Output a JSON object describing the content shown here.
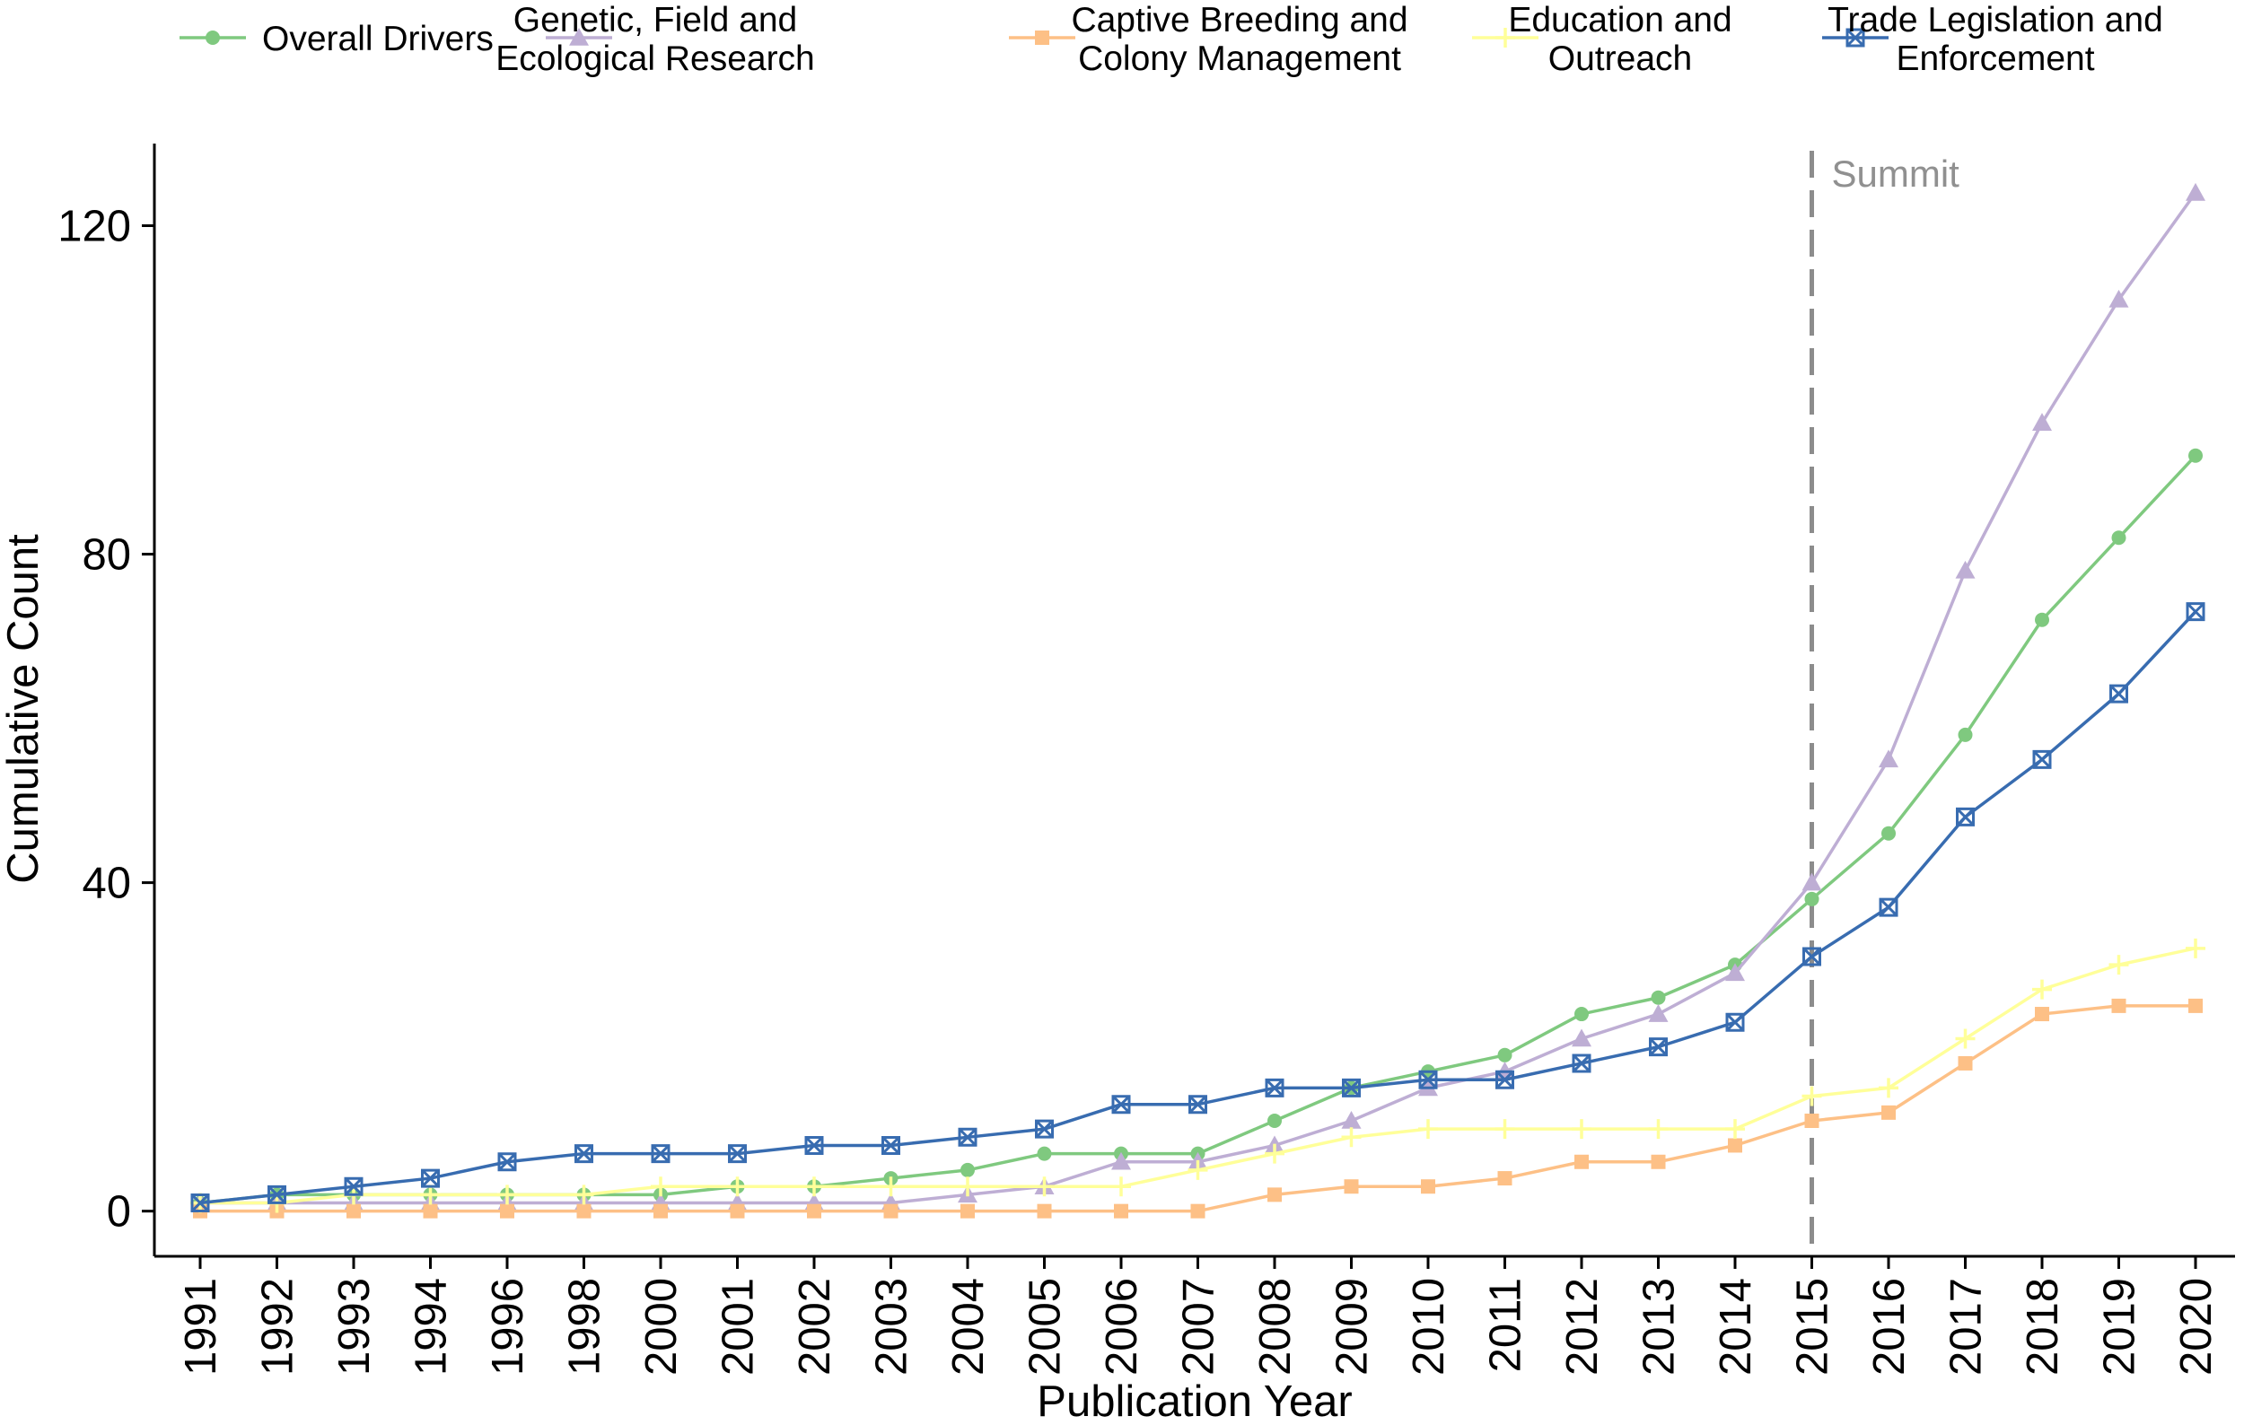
{
  "chart_data": {
    "type": "line",
    "xlabel": "Publication Year",
    "ylabel": "Cumulative Count",
    "categories": [
      "1991",
      "1992",
      "1993",
      "1994",
      "1996",
      "1998",
      "2000",
      "2001",
      "2002",
      "2003",
      "2004",
      "2005",
      "2006",
      "2007",
      "2008",
      "2009",
      "2010",
      "2011",
      "2012",
      "2013",
      "2014",
      "2015",
      "2016",
      "2017",
      "2018",
      "2019",
      "2020"
    ],
    "y_ticks": [
      0,
      40,
      80,
      120
    ],
    "ylim": [
      -5.5,
      130
    ],
    "grid": false,
    "legend_position": "top",
    "annotation": {
      "label": "Summit",
      "x": "2015",
      "style": "dashed vertical line"
    },
    "series": [
      {
        "name": "Overall Drivers",
        "name_lines": [
          "Overall Drivers"
        ],
        "color": "#7fc97f",
        "marker": "circle",
        "values": [
          1,
          2,
          2,
          2,
          2,
          2,
          2,
          3,
          3,
          4,
          5,
          7,
          7,
          7,
          11,
          15,
          17,
          19,
          24,
          26,
          30,
          38,
          46,
          58,
          72,
          82,
          92
        ]
      },
      {
        "name": "Genetic, Field and Ecological Research",
        "name_lines": [
          "Genetic, Field and",
          "Ecological Research"
        ],
        "color": "#beaed4",
        "marker": "triangle",
        "values": [
          1,
          1,
          1,
          1,
          1,
          1,
          1,
          1,
          1,
          1,
          2,
          3,
          6,
          6,
          8,
          11,
          15,
          17,
          21,
          24,
          29,
          40,
          55,
          78,
          96,
          111,
          124
        ]
      },
      {
        "name": "Captive Breeding and Colony Management",
        "name_lines": [
          "Captive Breeding and",
          "Colony Management"
        ],
        "color": "#fdc086",
        "marker": "square",
        "values": [
          0,
          0,
          0,
          0,
          0,
          0,
          0,
          0,
          0,
          0,
          0,
          0,
          0,
          0,
          2,
          3,
          3,
          4,
          6,
          6,
          8,
          11,
          12,
          18,
          24,
          25,
          25
        ]
      },
      {
        "name": "Education and Outreach",
        "name_lines": [
          "Education and",
          "Outreach"
        ],
        "color": "#ffff99",
        "marker": "plus",
        "values": [
          1,
          1,
          2,
          2,
          2,
          2,
          3,
          3,
          3,
          3,
          3,
          3,
          3,
          5,
          7,
          9,
          10,
          10,
          10,
          10,
          10,
          14,
          15,
          21,
          27,
          30,
          32
        ]
      },
      {
        "name": "Trade Legislation and Enforcement",
        "name_lines": [
          "Trade Legislation and",
          "Enforcement"
        ],
        "color": "#386cb0",
        "marker": "square-x",
        "values": [
          1,
          2,
          3,
          4,
          6,
          7,
          7,
          7,
          8,
          8,
          9,
          10,
          13,
          13,
          15,
          15,
          16,
          16,
          18,
          20,
          23,
          31,
          37,
          48,
          55,
          63,
          73
        ]
      }
    ]
  }
}
